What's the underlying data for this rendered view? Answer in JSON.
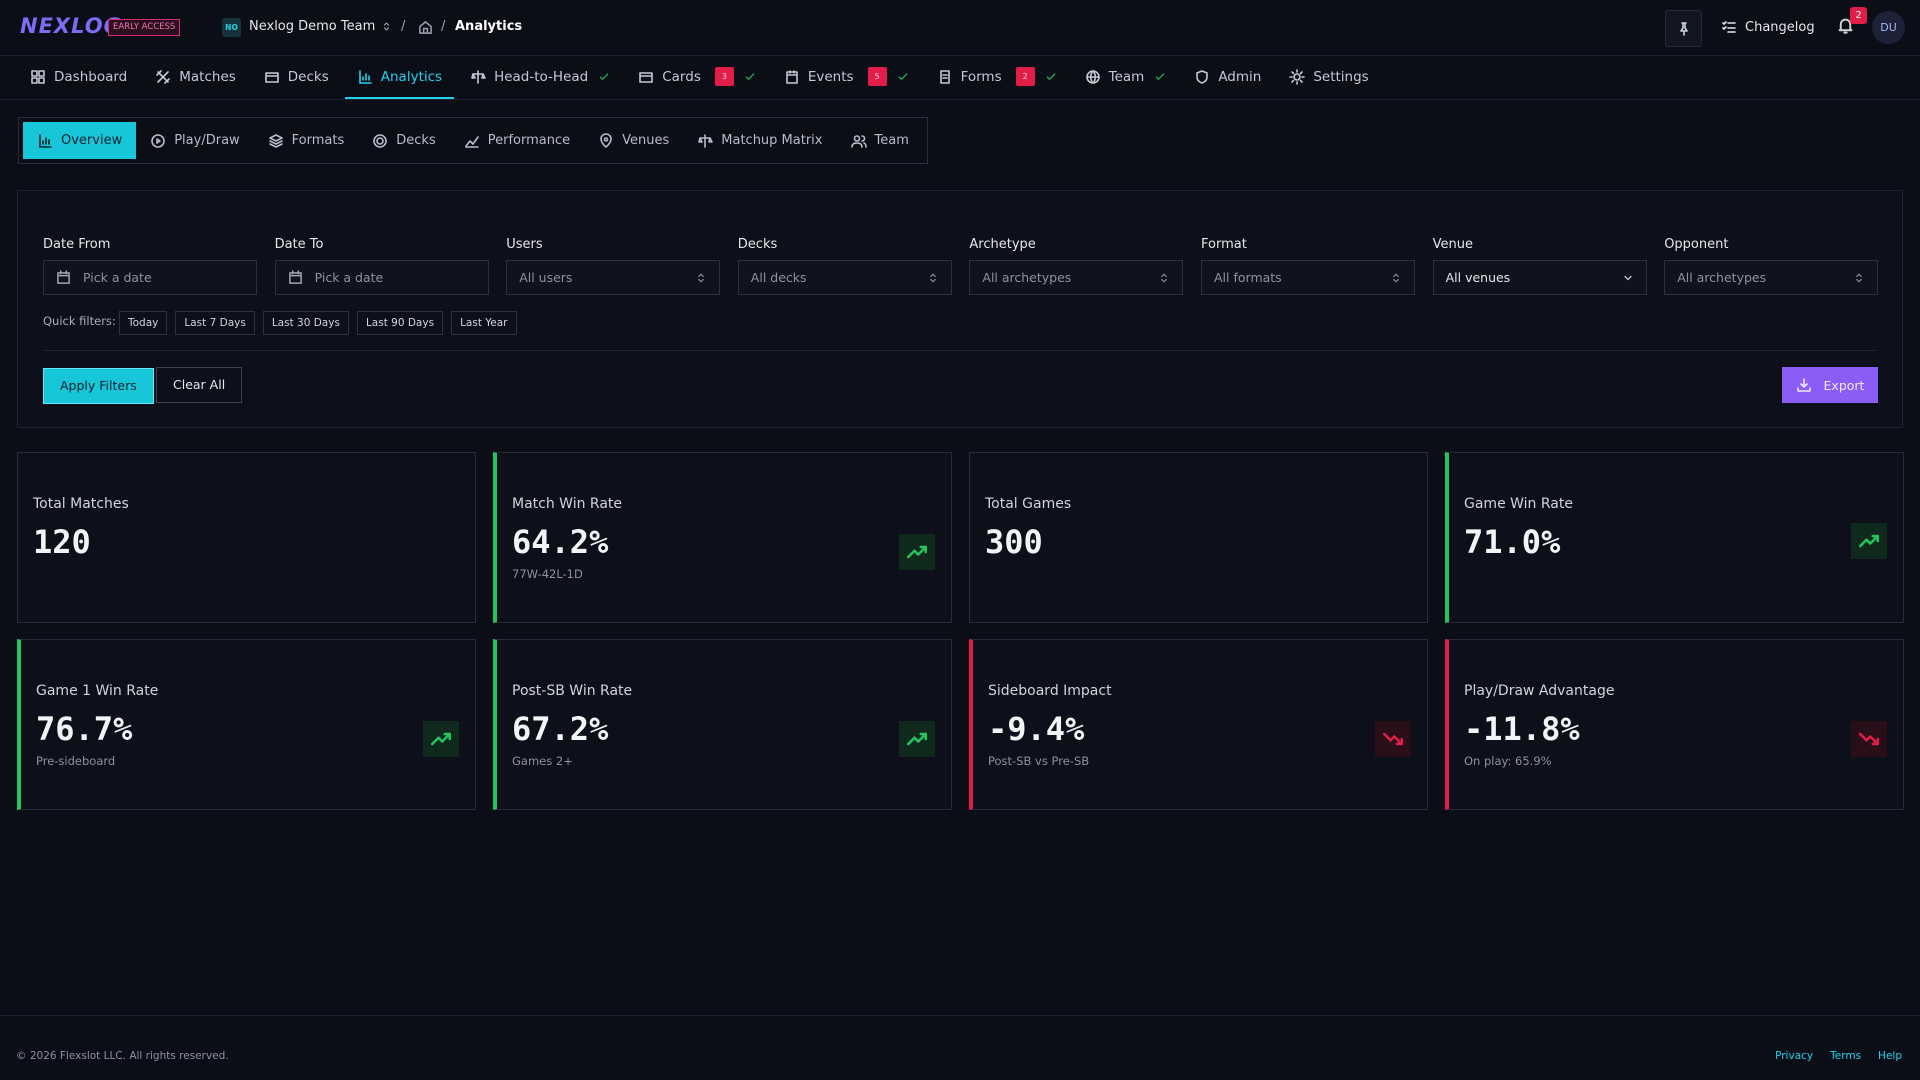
{
  "header": {
    "logo": "NEXLOG",
    "badge": "EARLY ACCESS",
    "team_initials": "NO",
    "team": "Nexlog Demo Team",
    "breadcrumb": {
      "separator": "/",
      "current": "Analytics"
    },
    "changelog": "Changelog",
    "notifications": "2",
    "avatar": "DU"
  },
  "nav": {
    "items": [
      {
        "label": "Dashboard"
      },
      {
        "label": "Matches"
      },
      {
        "label": "Decks"
      },
      {
        "label": "Analytics",
        "active": true
      },
      {
        "label": "Head-to-Head",
        "check": true
      },
      {
        "label": "Cards",
        "badge": 3,
        "check": true
      },
      {
        "label": "Events",
        "badge": 5,
        "check": true
      },
      {
        "label": "Forms",
        "badge": 2,
        "check": true
      },
      {
        "label": "Team",
        "check": true
      },
      {
        "label": "Admin"
      },
      {
        "label": "Settings"
      }
    ]
  },
  "subnav": {
    "tabs": [
      {
        "label": "Overview",
        "active": true
      },
      {
        "label": "Play/Draw"
      },
      {
        "label": "Formats"
      },
      {
        "label": "Decks"
      },
      {
        "label": "Performance"
      },
      {
        "label": "Venues"
      },
      {
        "label": "Matchup Matrix"
      },
      {
        "label": "Team"
      }
    ]
  },
  "filters": {
    "fields": [
      {
        "label": "Date From",
        "placeholder": "Pick a date",
        "control": "date"
      },
      {
        "label": "Date To",
        "placeholder": "Pick a date",
        "control": "date"
      },
      {
        "label": "Users",
        "placeholder": "All users",
        "control": "select"
      },
      {
        "label": "Decks",
        "placeholder": "All decks",
        "control": "select"
      },
      {
        "label": "Archetype",
        "placeholder": "All archetypes",
        "control": "select"
      },
      {
        "label": "Format",
        "placeholder": "All formats",
        "control": "select"
      },
      {
        "label": "Venue",
        "placeholder": "All venues",
        "control": "dropdown"
      },
      {
        "label": "Opponent",
        "placeholder": "All archetypes",
        "control": "select"
      }
    ],
    "quick_label": "Quick filters:",
    "quick": [
      "Today",
      "Last 7 Days",
      "Last 30 Days",
      "Last 90 Days",
      "Last Year"
    ],
    "apply": "Apply Filters",
    "clear": "Clear All",
    "export": "Export"
  },
  "stats": {
    "cards": [
      {
        "title": "Total Matches",
        "value": "120"
      },
      {
        "title": "Match Win Rate",
        "value": "64.2%",
        "detail": "77W-42L-1D",
        "trend": "up"
      },
      {
        "title": "Total Games",
        "value": "300"
      },
      {
        "title": "Game Win Rate",
        "value": "71.0%",
        "trend": "up"
      },
      {
        "title": "Game 1 Win Rate",
        "value": "76.7%",
        "detail": "Pre-sideboard",
        "trend": "up"
      },
      {
        "title": "Post-SB Win Rate",
        "value": "67.2%",
        "detail": "Games 2+",
        "trend": "up"
      },
      {
        "title": "Sideboard Impact",
        "value": "-9.4%",
        "detail": "Post-SB vs Pre-SB",
        "trend": "down"
      },
      {
        "title": "Play/Draw Advantage",
        "value": "-11.8%",
        "detail": "On play: 65.9%",
        "trend": "down"
      }
    ]
  },
  "footer": {
    "copyright": "© 2026 Flexslot LLC. All rights reserved.",
    "links": [
      "Privacy",
      "Terms",
      "Help"
    ]
  }
}
